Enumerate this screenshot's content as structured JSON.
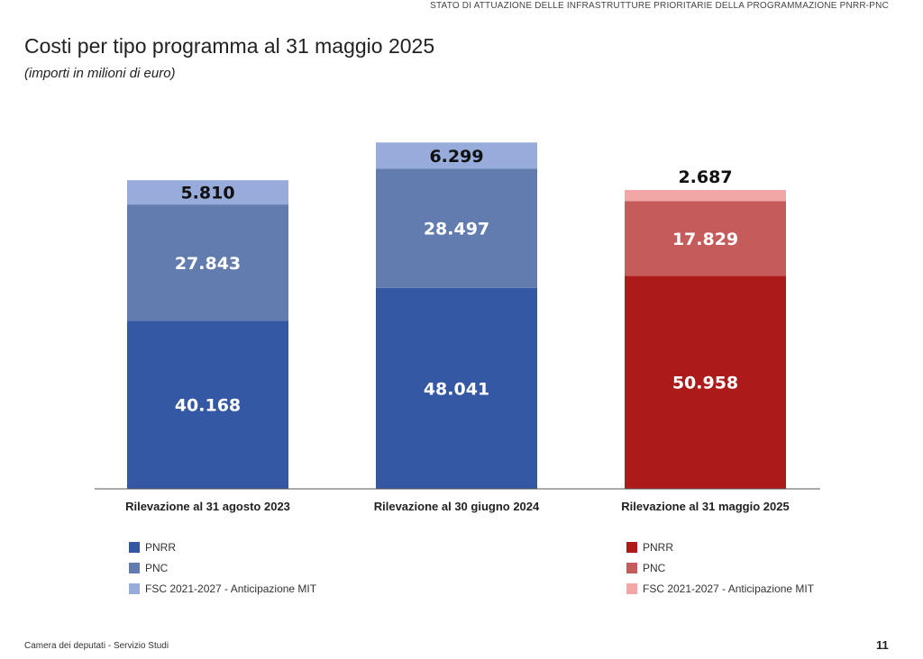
{
  "header": "STATO DI ATTUAZIONE DELLE INFRASTRUTTURE PRIORITARIE DELLA PROGRAMMAZIONE PNRR-PNC",
  "footer": "Camera dei deputati - Servizio Studi",
  "page_number": "11",
  "chart_data": {
    "type": "bar",
    "stacked": true,
    "title": "Costi per tipo programma al 31 maggio 2025",
    "subtitle": "(importi in milioni di euro)",
    "categories": [
      "Rilevazione al 31 agosto 2023",
      "Rilevazione al 30 giugno 2024",
      "Rilevazione al 31 maggio 2025"
    ],
    "series": [
      {
        "name": "PNRR",
        "values": [
          40168,
          48041,
          50958
        ],
        "labels": [
          "40.168",
          "48.041",
          "50.958"
        ]
      },
      {
        "name": "PNC",
        "values": [
          27843,
          28497,
          17829
        ],
        "labels": [
          "27.843",
          "28.497",
          "17.829"
        ]
      },
      {
        "name": "FSC 2021-2027 - Anticipazione MIT",
        "values": [
          5810,
          6299,
          2687
        ],
        "labels": [
          "5.810",
          "6.299",
          "2.687"
        ]
      }
    ],
    "colors": {
      "blue": [
        "#3558a5",
        "#627cb0",
        "#97acdb"
      ],
      "red": [
        "#ad1a1a",
        "#c65b5b",
        "#f2a6a6"
      ]
    },
    "category_palette": [
      "blue",
      "blue",
      "red"
    ],
    "ylim": [
      0,
      90000
    ],
    "grid": false,
    "legends": [
      {
        "placement": "bottom-left",
        "palette": "blue",
        "entries": [
          "PNRR",
          "PNC",
          "FSC 2021-2027 - Anticipazione MIT"
        ]
      },
      {
        "placement": "bottom-right",
        "palette": "red",
        "entries": [
          "PNRR",
          "PNC",
          "FSC 2021-2027 - Anticipazione MIT"
        ]
      }
    ]
  }
}
